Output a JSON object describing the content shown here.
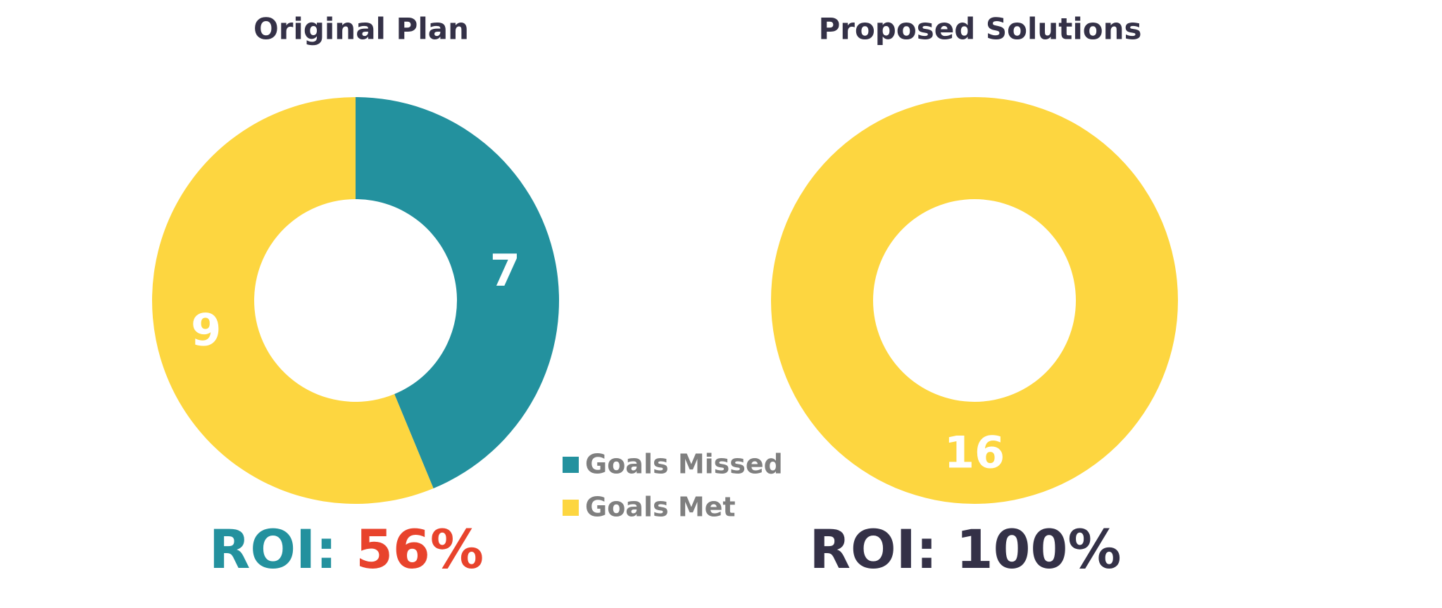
{
  "chart_data": [
    {
      "type": "donut",
      "title": "Original Plan",
      "categories": [
        "Goals Missed",
        "Goals Met"
      ],
      "values": [
        7,
        9
      ],
      "colors": [
        "#23919e",
        "#fdd640"
      ],
      "roi_label": "ROI:",
      "roi": "56%",
      "roi_label_color": "#23919e",
      "roi_color": "#e8432c"
    },
    {
      "type": "donut",
      "title": "Proposed Solutions",
      "categories": [
        "Goals Missed",
        "Goals Met"
      ],
      "values": [
        0,
        16
      ],
      "colors": [
        "#23919e",
        "#fdd640"
      ],
      "roi_label": "ROI:",
      "roi": "100%",
      "roi_label_color": "#343147",
      "roi_color": "#343147"
    }
  ]
}
